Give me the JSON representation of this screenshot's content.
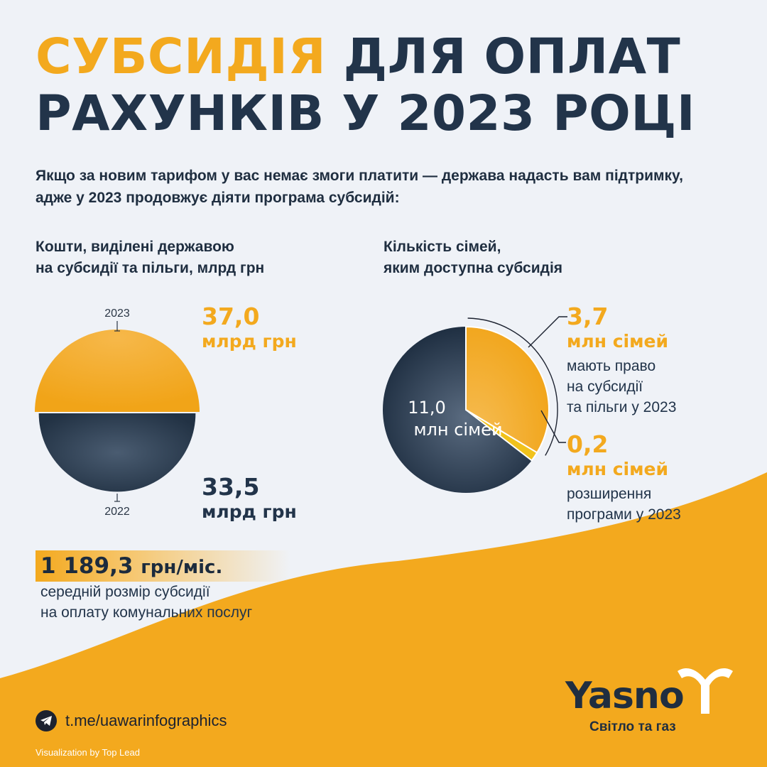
{
  "title": {
    "highlight": "СУБСИДІЯ",
    "rest_line1": "ДЛЯ ОПЛАТ",
    "line2": "РАХУНКІВ У 2023 РОЦІ"
  },
  "intro": "Якщо за новим тарифом у вас немає змоги платити — держава надасть вам підтримку, адже у 2023 продовжує діяти програма субсидій:",
  "colors": {
    "orange": "#f3a91e",
    "navy": "#22344a",
    "yellow": "#f1c21b",
    "background": "#eff2f7"
  },
  "chart_data": [
    {
      "type": "pie",
      "title_lines": [
        "Кошти, виділені державою",
        "на субсидії та пільги, млрд грн"
      ],
      "categories": [
        "2023",
        "2022"
      ],
      "values": [
        37.0,
        33.5
      ],
      "unit": "млрд грн",
      "value_labels": [
        "37,0",
        "33,5"
      ],
      "series_colors": [
        "#f3a91e",
        "#2d3d51"
      ]
    },
    {
      "type": "pie",
      "title_lines": [
        "Кількість сімей,",
        "яким доступна субсидія"
      ],
      "total_label": "11,0",
      "total_unit": "млн сімей",
      "total": 11.0,
      "slices": [
        {
          "value": 3.7,
          "label": "3,7",
          "unit": "млн сімей",
          "desc_lines": [
            "мають право",
            "на субсидії",
            "та пільги у 2023"
          ],
          "color": "#f3a91e"
        },
        {
          "value": 0.2,
          "label": "0,2",
          "unit": "млн сімей",
          "desc_lines": [
            "розширення",
            "програми у 2023"
          ],
          "color": "#f1c21b"
        }
      ]
    }
  ],
  "average": {
    "value": "1 189,3",
    "unit": "грн/міс.",
    "desc_lines": [
      "середній розмір субсидії",
      "на оплату комунальних послуг"
    ]
  },
  "footer": {
    "telegram": "t.me/uawarinfographics",
    "credit": "Visualization by Top Lead",
    "icon": "telegram-icon"
  },
  "logo": {
    "name": "Yasno",
    "tagline": "Світло та газ",
    "icon": "yasno-y-icon"
  }
}
